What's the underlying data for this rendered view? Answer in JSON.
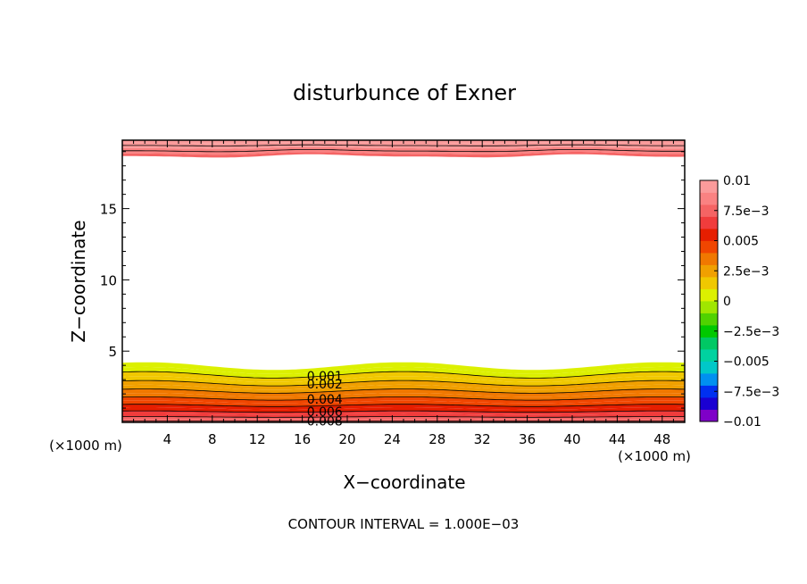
{
  "chart_data": {
    "type": "contour",
    "title": "disturbunce of Exner",
    "xlabel": "X−coordinate",
    "ylabel": "Z−coordinate",
    "x_unit_left": "(×1000 m)",
    "x_unit_right": "(×1000 m)",
    "xlim": [
      0,
      50
    ],
    "ylim": [
      0,
      19.8
    ],
    "xticks": [
      4,
      8,
      12,
      16,
      20,
      24,
      28,
      32,
      36,
      40,
      44,
      48
    ],
    "xtick_labels": [
      "4",
      "8",
      "12",
      "16",
      "20",
      "24",
      "28",
      "32",
      "36",
      "40",
      "44",
      "48"
    ],
    "yticks": [
      5,
      10,
      15
    ],
    "ytick_labels": [
      "5",
      "10",
      "15"
    ],
    "contour_interval_text": "CONTOUR INTERVAL = 1.000E−03",
    "contour_labels": [
      "0.008",
      "0.006",
      "0.004",
      "0.002",
      "0.001"
    ],
    "contour_label_x": 18,
    "colorbar": {
      "range": [
        -0.01,
        0.01
      ],
      "tick_labels": [
        "0.01",
        "7.5e−3",
        "0.005",
        "2.5e−3",
        "0",
        "−2.5e−3",
        "−0.005",
        "−7.5e−3",
        "−0.01"
      ],
      "colors": [
        "#7f00c8",
        "#1a00d2",
        "#0030f0",
        "#0090f0",
        "#00c8c8",
        "#00d2a0",
        "#00c864",
        "#00c800",
        "#50d200",
        "#a0e600",
        "#dcf000",
        "#f0c800",
        "#f0a000",
        "#f07800",
        "#f04600",
        "#e61e00",
        "#f03c3c",
        "#f56464",
        "#fa8282",
        "#fa9b9b"
      ]
    }
  }
}
